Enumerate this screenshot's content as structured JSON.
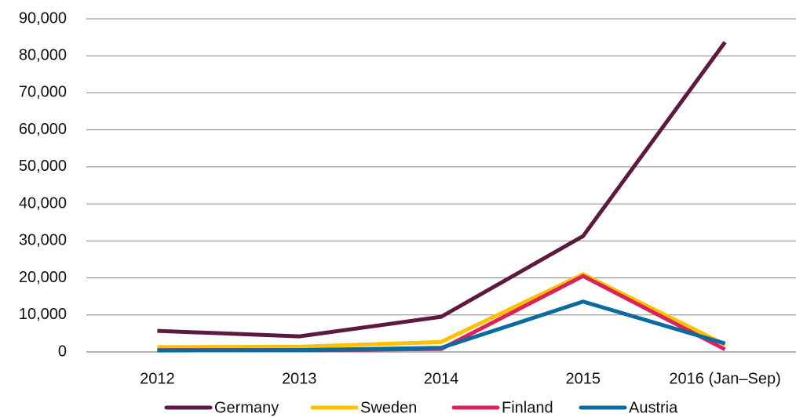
{
  "chart_data": {
    "type": "line",
    "categories": [
      "2012",
      "2013",
      "2014",
      "2015",
      "2016 (Jan–Sep)"
    ],
    "series": [
      {
        "name": "Germany",
        "color": "#5b1a3e",
        "values": [
          5700,
          4200,
          9500,
          31300,
          83700
        ]
      },
      {
        "name": "Sweden",
        "color": "#ffc000",
        "values": [
          1300,
          1400,
          2700,
          21000,
          2000
        ]
      },
      {
        "name": "Finland",
        "color": "#d9245a",
        "values": [
          500,
          500,
          800,
          20500,
          700
        ]
      },
      {
        "name": "Austria",
        "color": "#0a6aa1",
        "values": [
          400,
          500,
          1100,
          13600,
          2300
        ]
      }
    ],
    "ylim": [
      0,
      90000
    ],
    "yticks": [
      0,
      {
        "value": 10000,
        "label": "10,000"
      },
      {
        "value": 20000,
        "label": "20,000"
      },
      {
        "value": 30000,
        "label": "30,000"
      },
      {
        "value": 40000,
        "label": "40,000"
      },
      {
        "value": 50000,
        "label": "50,000"
      },
      {
        "value": 60000,
        "label": "60,000"
      },
      {
        "value": 70000,
        "label": "70,000"
      },
      {
        "value": 80000,
        "label": "80,000"
      },
      {
        "value": 90000,
        "label": "90,000"
      }
    ],
    "grid": true,
    "legend": "bottom"
  }
}
